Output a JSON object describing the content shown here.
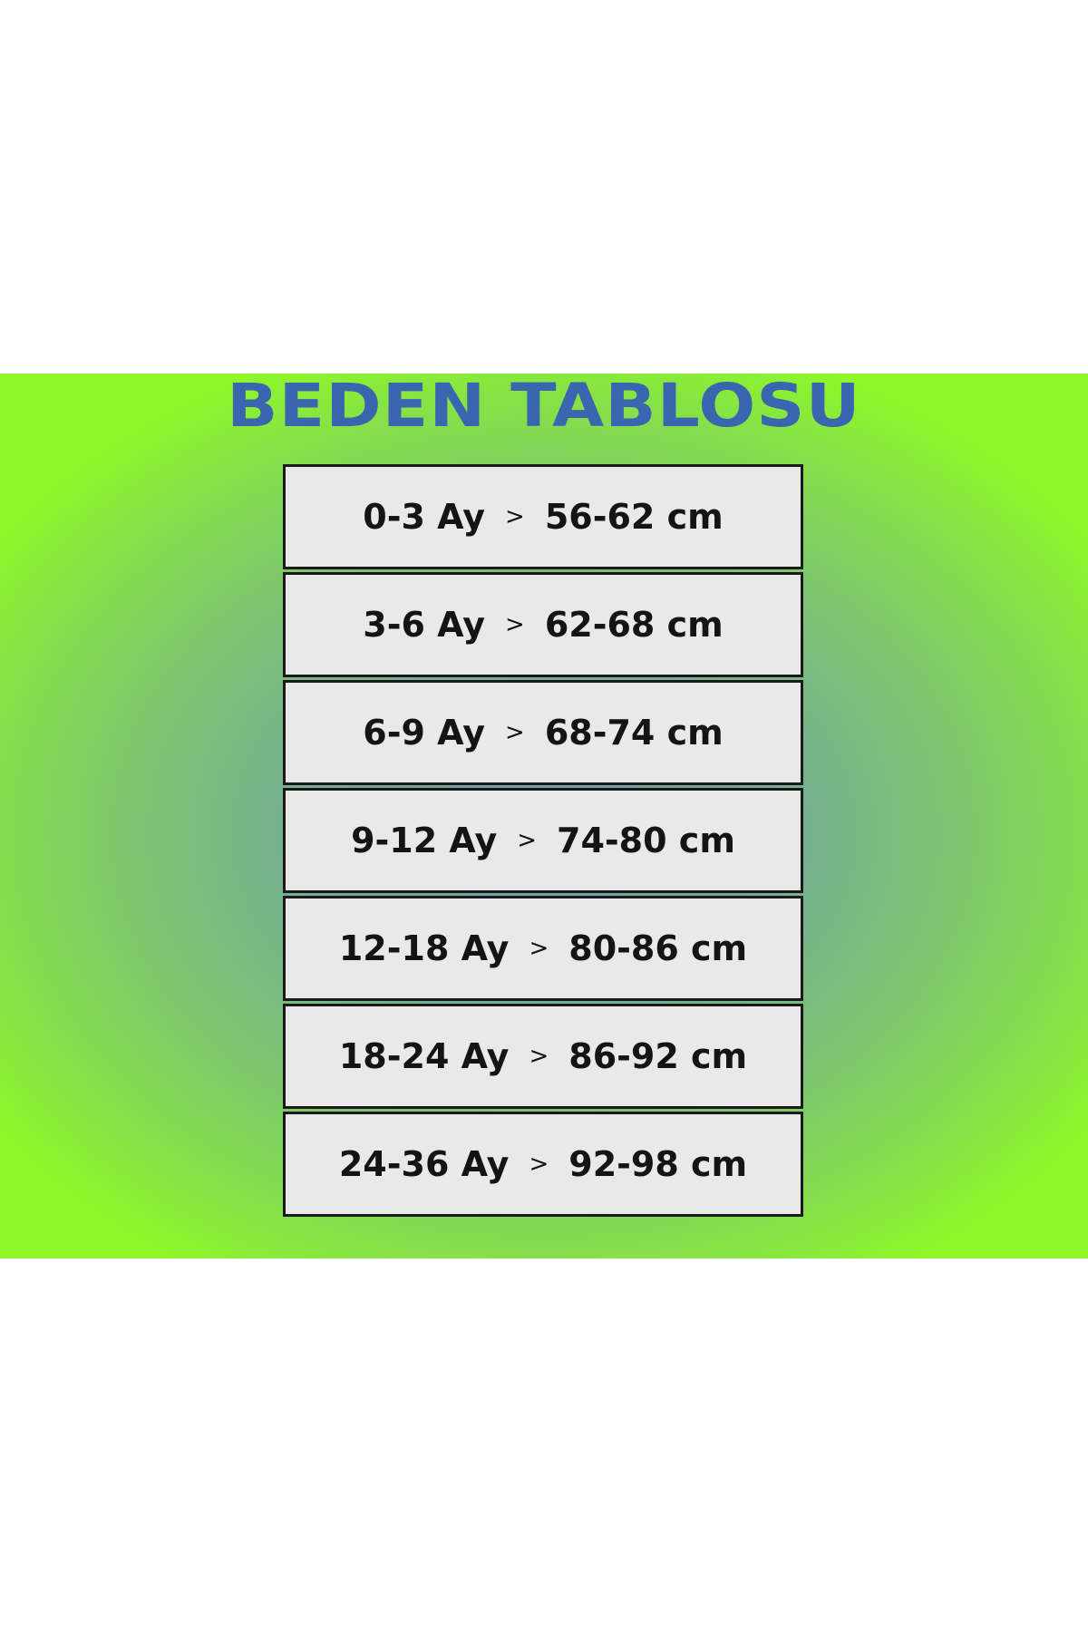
{
  "title": "BEDEN TABLOSU",
  "colors": {
    "title": "#3a66b0",
    "cell_bg": "#e9e9e9",
    "border": "#1a1a1a"
  },
  "separator": ">",
  "rows": [
    {
      "age": "0-3 Ay",
      "height": "56-62 cm"
    },
    {
      "age": "3-6 Ay",
      "height": "62-68 cm"
    },
    {
      "age": "6-9 Ay",
      "height": "68-74 cm"
    },
    {
      "age": "9-12 Ay",
      "height": "74-80 cm"
    },
    {
      "age": "12-18 Ay",
      "height": "80-86 cm"
    },
    {
      "age": "18-24 Ay",
      "height": "86-92 cm"
    },
    {
      "age": "24-36 Ay",
      "height": "92-98 cm"
    }
  ]
}
